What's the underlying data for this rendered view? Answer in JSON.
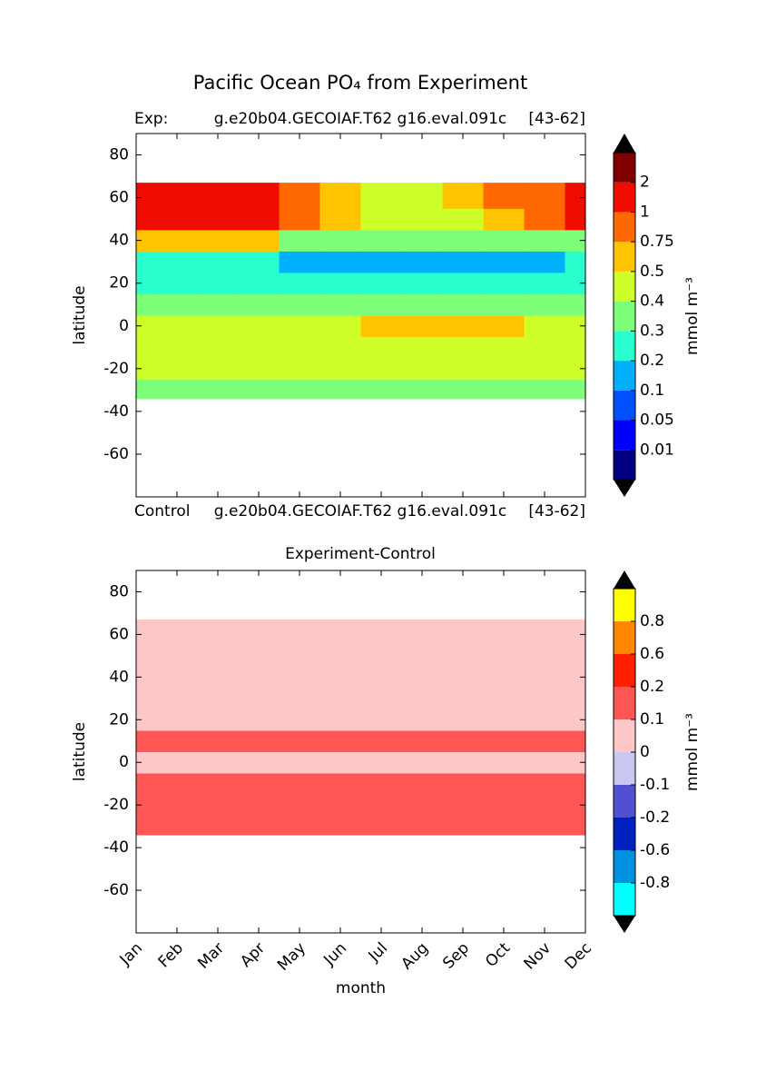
{
  "chart_data": [
    {
      "type": "contour",
      "title": "Pacific Ocean PO₄ from Experiment",
      "header": [
        "Exp:",
        "g.e20b04.GECOIAF.T62 g16.eval.091c",
        "[43-62]"
      ],
      "footer": [
        "Control",
        "g.e20b04.GECOIAF.T62 g16.eval.091c",
        "[43-62]"
      ],
      "ylabel": "latitude",
      "categories": [
        "Jan",
        "Feb",
        "Mar",
        "Apr",
        "May",
        "Jun",
        "Jul",
        "Aug",
        "Sep",
        "Oct",
        "Nov",
        "Dec"
      ],
      "ylim": [
        -80,
        90
      ],
      "yticks": [
        80,
        60,
        40,
        20,
        0,
        -20,
        -40,
        -60
      ],
      "lat_bins": [
        -34,
        -25,
        -15,
        -5,
        5,
        15,
        25,
        35,
        45,
        55,
        67
      ],
      "z": [
        [
          0.35,
          0.35,
          0.35,
          0.35,
          0.35,
          0.35,
          0.35,
          0.35,
          0.35,
          0.35,
          0.35,
          0.35
        ],
        [
          0.45,
          0.45,
          0.45,
          0.45,
          0.45,
          0.45,
          0.45,
          0.45,
          0.45,
          0.45,
          0.45,
          0.45
        ],
        [
          0.45,
          0.45,
          0.45,
          0.45,
          0.45,
          0.45,
          0.45,
          0.45,
          0.45,
          0.45,
          0.45,
          0.45
        ],
        [
          0.45,
          0.45,
          0.45,
          0.45,
          0.45,
          0.45,
          0.55,
          0.55,
          0.55,
          0.55,
          0.45,
          0.45
        ],
        [
          0.35,
          0.35,
          0.35,
          0.35,
          0.35,
          0.35,
          0.35,
          0.35,
          0.35,
          0.35,
          0.35,
          0.35
        ],
        [
          0.25,
          0.25,
          0.25,
          0.25,
          0.25,
          0.25,
          0.25,
          0.25,
          0.25,
          0.25,
          0.25,
          0.25
        ],
        [
          0.25,
          0.25,
          0.25,
          0.25,
          0.15,
          0.15,
          0.15,
          0.15,
          0.15,
          0.15,
          0.15,
          0.25
        ],
        [
          0.55,
          0.55,
          0.55,
          0.55,
          0.35,
          0.35,
          0.35,
          0.35,
          0.35,
          0.35,
          0.35,
          0.35
        ],
        [
          1.5,
          1.5,
          1.5,
          1.5,
          0.9,
          0.6,
          0.45,
          0.45,
          0.45,
          0.6,
          0.9,
          1.5
        ],
        [
          1.5,
          1.5,
          1.5,
          1.5,
          0.9,
          0.6,
          0.45,
          0.45,
          0.6,
          0.9,
          0.9,
          1.5
        ]
      ],
      "levels": [
        0.01,
        0.05,
        0.1,
        0.2,
        0.3,
        0.4,
        0.5,
        0.75,
        1,
        2
      ],
      "colors": [
        "#000080",
        "#0000ff",
        "#0050ff",
        "#00b0ff",
        "#29ffce",
        "#7dff7a",
        "#ceff29",
        "#ffc400",
        "#ff6800",
        "#f10c00",
        "#800000"
      ],
      "colorbar_label": "mmol m⁻³"
    },
    {
      "type": "contour",
      "title": "Experiment-Control",
      "ylabel": "latitude",
      "xlabel": "month",
      "categories": [
        "Jan",
        "Feb",
        "Mar",
        "Apr",
        "May",
        "Jun",
        "Jul",
        "Aug",
        "Sep",
        "Oct",
        "Nov",
        "Dec"
      ],
      "ylim": [
        -80,
        90
      ],
      "yticks": [
        80,
        60,
        40,
        20,
        0,
        -20,
        -40,
        -60
      ],
      "lat_bins": [
        -34,
        -25,
        -15,
        -5,
        5,
        15,
        25,
        35,
        45,
        55,
        67
      ],
      "z": [
        [
          0.15,
          0.15,
          0.15,
          0.15,
          0.15,
          0.15,
          0.15,
          0.15,
          0.15,
          0.15,
          0.15,
          0.15
        ],
        [
          0.15,
          0.15,
          0.15,
          0.15,
          0.15,
          0.15,
          0.15,
          0.15,
          0.15,
          0.15,
          0.15,
          0.15
        ],
        [
          0.15,
          0.15,
          0.15,
          0.15,
          0.15,
          0.15,
          0.15,
          0.15,
          0.15,
          0.15,
          0.15,
          0.15
        ],
        [
          0.05,
          0.05,
          0.05,
          0.05,
          0.05,
          0.05,
          0.05,
          0.05,
          0.05,
          0.05,
          0.05,
          0.05
        ],
        [
          0.15,
          0.15,
          0.15,
          0.15,
          0.15,
          0.15,
          0.15,
          0.15,
          0.15,
          0.15,
          0.15,
          0.15
        ],
        [
          0.05,
          0.05,
          0.05,
          0.05,
          0.05,
          0.05,
          0.05,
          0.05,
          0.05,
          0.05,
          0.05,
          0.05
        ],
        [
          0.05,
          0.05,
          0.05,
          0.05,
          0.05,
          0.05,
          0.05,
          0.05,
          0.05,
          0.05,
          0.05,
          0.05
        ],
        [
          0.05,
          0.05,
          0.05,
          0.05,
          0.05,
          0.05,
          0.05,
          0.05,
          0.05,
          0.05,
          0.05,
          0.05
        ],
        [
          0.05,
          0.05,
          0.05,
          0.05,
          0.05,
          0.05,
          0.05,
          0.05,
          0.05,
          0.05,
          0.05,
          0.05
        ],
        [
          0.05,
          0.05,
          0.05,
          0.05,
          0.05,
          0.05,
          0.05,
          0.05,
          0.05,
          0.05,
          0.05,
          0.05
        ]
      ],
      "levels": [
        -0.8,
        -0.6,
        -0.2,
        -0.1,
        0,
        0.1,
        0.2,
        0.6,
        0.8
      ],
      "colors": [
        "#00ffff",
        "#0090e0",
        "#0020c0",
        "#5050d0",
        "#c8c8f0",
        "#ffc8c8",
        "#ff5555",
        "#ff2000",
        "#ff8800",
        "#ffff00"
      ],
      "colorbar_label": "mmol m⁻³"
    }
  ]
}
